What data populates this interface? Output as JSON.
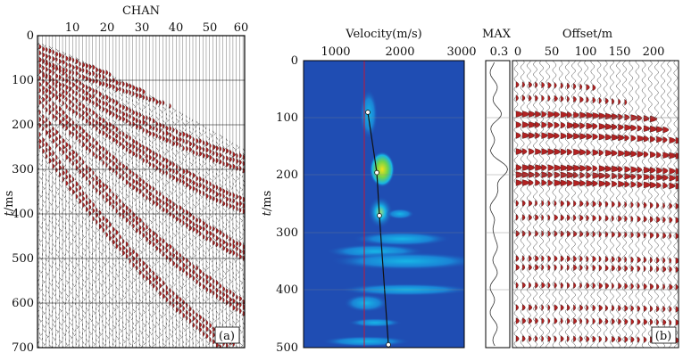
{
  "panel_a": {
    "title": "CHAN",
    "ylabel_italic": "t",
    "ylabel_unit": "/ms",
    "panel_tag": "(a)",
    "x_ticks": [
      "10",
      "20",
      "30",
      "40",
      "50",
      "60"
    ],
    "y_ticks": [
      "0",
      "100",
      "200",
      "300",
      "400",
      "500",
      "600",
      "700"
    ]
  },
  "panel_b": {
    "velocity_title": "Velocity(m/s)",
    "velocity_ticks": [
      "1000",
      "2000",
      "3000"
    ],
    "max_title": "MAX",
    "max_tick": "0.3",
    "offset_title": "Offset/m",
    "offset_ticks": [
      "0",
      "50",
      "100",
      "150",
      "200"
    ],
    "ylabel_italic": "t",
    "ylabel_unit": "/ms",
    "y_ticks": [
      "0",
      "100",
      "200",
      "300",
      "400",
      "500"
    ],
    "panel_tag": "(b)"
  },
  "colors": {
    "wiggle_fill": "#b22222",
    "trace": "#222222",
    "semblance_bg": "#1f4db3",
    "semblance_mid": "#17b5e6",
    "semblance_high": "#6fd44a",
    "semblance_peak": "#f2e21b"
  },
  "chart_data": [
    {
      "type": "other",
      "description_source": "panel a",
      "x_axis": {
        "label": "CHAN",
        "range": [
          0,
          60
        ]
      },
      "y_axis": {
        "label": "t/ms",
        "range": [
          0,
          700
        ],
        "reversed": true
      }
    },
    {
      "type": "heatmap",
      "description_source": "panel b velocity spectrum",
      "x_axis": {
        "label": "Velocity(m/s)",
        "range": [
          500,
          3000
        ]
      },
      "y_axis": {
        "label": "t/ms",
        "range": [
          0,
          500
        ],
        "reversed": true
      },
      "picks": [
        {
          "t": 90,
          "v": 1500
        },
        {
          "t": 195,
          "v": 1640
        },
        {
          "t": 270,
          "v": 1680
        },
        {
          "t": 495,
          "v": 1820
        }
      ]
    },
    {
      "type": "line",
      "description_source": "panel b MAX",
      "x_axis": {
        "label": "MAX",
        "ticks": [
          0.3
        ]
      }
    },
    {
      "type": "other",
      "description_source": "panel b offset gather",
      "x_axis": {
        "label": "Offset/m",
        "range": [
          0,
          225
        ]
      },
      "y_axis": {
        "range": [
          0,
          500
        ],
        "reversed": true
      }
    }
  ]
}
